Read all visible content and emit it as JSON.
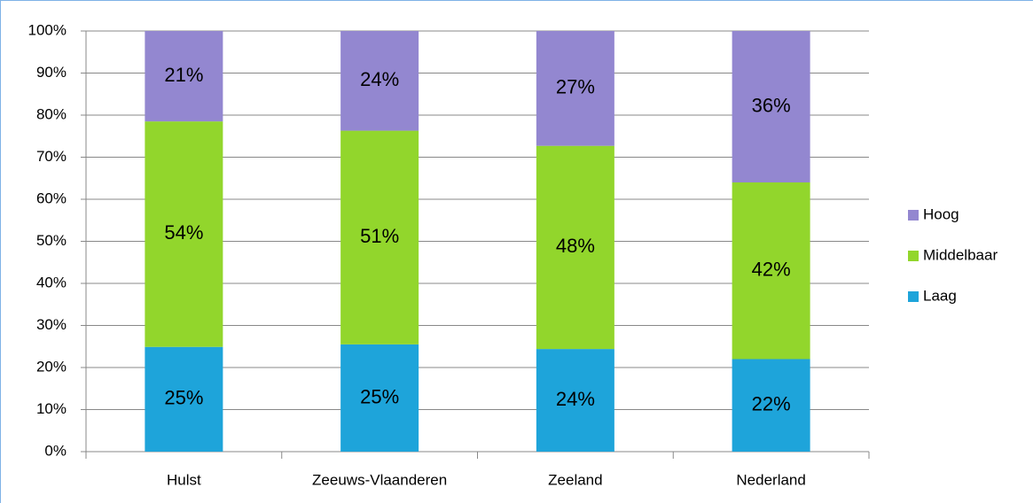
{
  "chart_data": {
    "type": "stacked_bar",
    "categories": [
      "Hulst",
      "Zeeuws-Vlaanderen",
      "Zeeland",
      "Nederland"
    ],
    "series": [
      {
        "name": "Laag",
        "color": "#1ea4da",
        "values": [
          24.9,
          25.5,
          24.4,
          22
        ],
        "value_labels": [
          "25%",
          "25%",
          "24%",
          "22%"
        ]
      },
      {
        "name": "Middelbaar",
        "color": "#92d62c",
        "values": [
          53.6,
          50.8,
          48.3,
          42
        ],
        "value_labels": [
          "54%",
          "51%",
          "48%",
          "42%"
        ]
      },
      {
        "name": "Hoog",
        "color": "#9387d0",
        "values": [
          21.5,
          23.7,
          27.3,
          36
        ],
        "value_labels": [
          "21%",
          "24%",
          "27%",
          "36%"
        ]
      }
    ],
    "ylim": [
      0,
      100
    ],
    "yticks": [
      {
        "value": 0,
        "label": "0%"
      },
      {
        "value": 10,
        "label": "10%"
      },
      {
        "value": 20,
        "label": "20%"
      },
      {
        "value": 30,
        "label": "30%"
      },
      {
        "value": 40,
        "label": "40%"
      },
      {
        "value": 50,
        "label": "50%"
      },
      {
        "value": 60,
        "label": "60%"
      },
      {
        "value": 70,
        "label": "70%"
      },
      {
        "value": 80,
        "label": "80%"
      },
      {
        "value": 90,
        "label": "90%"
      },
      {
        "value": 100,
        "label": "100%"
      }
    ],
    "grid": true,
    "legend": "right"
  }
}
